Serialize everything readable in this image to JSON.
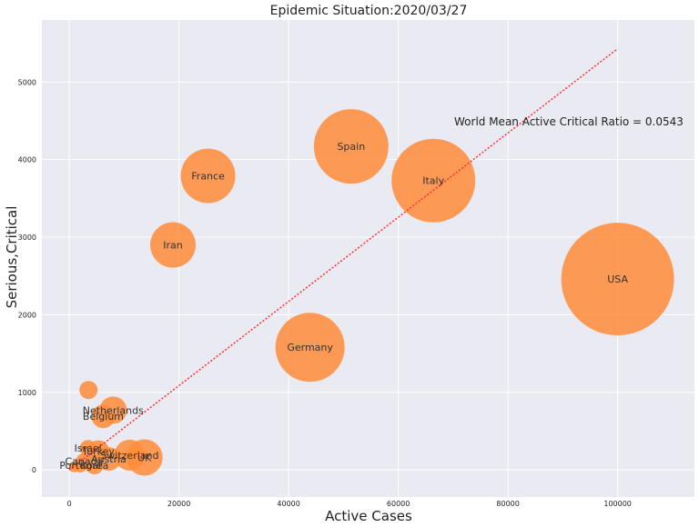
{
  "chart_data": {
    "type": "scatter",
    "title": "Epidemic Situation:2020/03/27",
    "xlabel": "Active Cases",
    "ylabel": "Serious,Critical",
    "xlim": [
      -5000,
      114000
    ],
    "ylim": [
      -350,
      5800
    ],
    "xticks": [
      0,
      20000,
      40000,
      60000,
      80000,
      100000
    ],
    "yticks": [
      0,
      1000,
      2000,
      3000,
      4000,
      5000
    ],
    "grid": true,
    "bubble_color": "#ff8c3a",
    "annotation": "World Mean Active Critical Ratio = 0.0543",
    "trend_line": {
      "slope": 0.0543,
      "x": [
        0,
        100000
      ],
      "color": "#ff2d2d"
    },
    "points": [
      {
        "label": "USA",
        "x": 100000,
        "y": 2460,
        "r": 62
      },
      {
        "label": "Italy",
        "x": 66400,
        "y": 3730,
        "r": 46
      },
      {
        "label": "Spain",
        "x": 51400,
        "y": 4170,
        "r": 41
      },
      {
        "label": "Germany",
        "x": 43900,
        "y": 1580,
        "r": 38
      },
      {
        "label": "France",
        "x": 25300,
        "y": 3790,
        "r": 30
      },
      {
        "label": "Iran",
        "x": 18900,
        "y": 2900,
        "r": 25
      },
      {
        "label": "",
        "x": 3500,
        "y": 1030,
        "r": 10
      },
      {
        "label": "Netherlands",
        "x": 8000,
        "y": 770,
        "r": 15
      },
      {
        "label": "Belgium",
        "x": 6200,
        "y": 690,
        "r": 13
      },
      {
        "label": "UK",
        "x": 13700,
        "y": 160,
        "r": 20
      },
      {
        "label": "Switzerland",
        "x": 11000,
        "y": 190,
        "r": 17
      },
      {
        "label": "Austria",
        "x": 7200,
        "y": 140,
        "r": 13
      },
      {
        "label": "Turkey",
        "x": 5300,
        "y": 240,
        "r": 12
      },
      {
        "label": "Israel",
        "x": 3400,
        "y": 280,
        "r": 9
      },
      {
        "label": "Canada",
        "x": 2700,
        "y": 110,
        "r": 9
      },
      {
        "label": "Korea",
        "x": 4600,
        "y": 60,
        "r": 10
      },
      {
        "label": "Portugal",
        "x": 2000,
        "y": 60,
        "r": 8
      },
      {
        "label": "",
        "x": 900,
        "y": 40,
        "r": 6
      }
    ]
  }
}
